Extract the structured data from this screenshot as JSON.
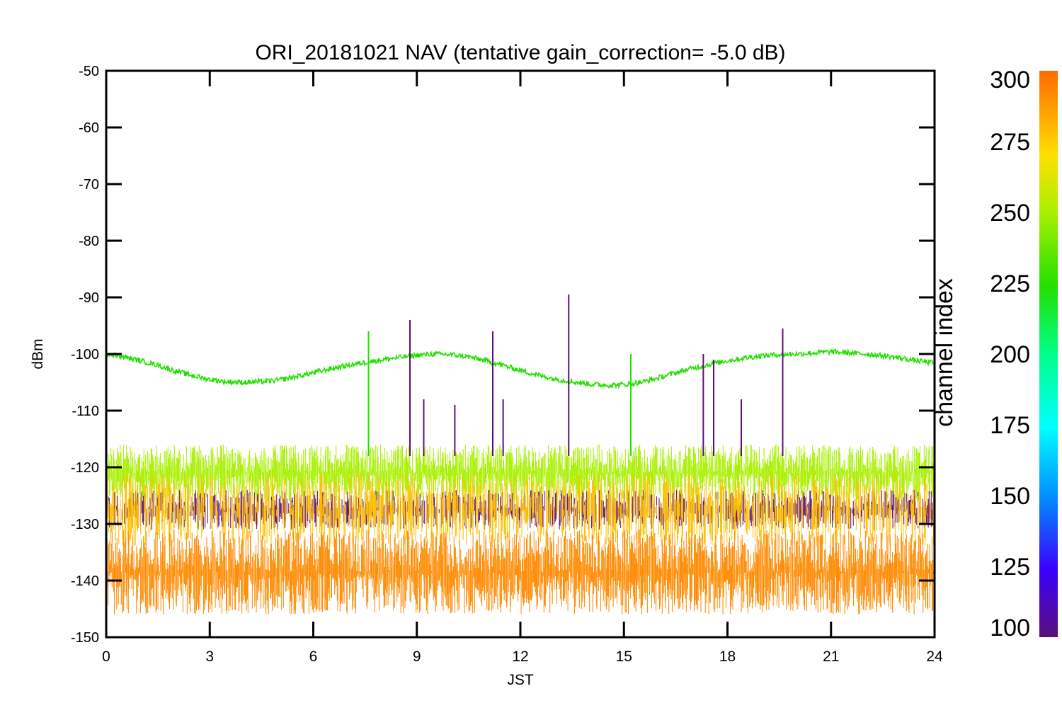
{
  "chart_data": {
    "type": "line",
    "title": "ORI_20181021 NAV (tentative gain_correction= -5.0 dB)",
    "xlabel": "JST",
    "ylabel": "dBm",
    "xlim": [
      0,
      24
    ],
    "ylim": [
      -150,
      -50
    ],
    "x_ticks": [
      0,
      3,
      6,
      9,
      12,
      15,
      18,
      21,
      24
    ],
    "y_ticks": [
      -50,
      -60,
      -70,
      -80,
      -90,
      -100,
      -110,
      -120,
      -130,
      -140,
      -150
    ],
    "colorbar": {
      "label": "channel index",
      "range": [
        100,
        300
      ],
      "ticks": [
        300,
        275,
        250,
        225,
        200,
        175,
        150,
        125,
        100
      ],
      "colormap": [
        "#5a0f7a",
        "#3b00ff",
        "#0090ff",
        "#00ffff",
        "#00ff88",
        "#22e000",
        "#a8f000",
        "#ffe000",
        "#ffa000",
        "#ff6a00"
      ]
    },
    "series": [
      {
        "channel_color": "#22e000",
        "description_curve": "strong",
        "x": [
          0,
          0.5,
          1,
          1.5,
          2,
          2.5,
          3,
          3.5,
          4,
          4.5,
          5,
          5.5,
          6,
          6.5,
          7,
          7.5,
          8,
          8.5,
          9,
          9.5,
          10,
          10.5,
          11,
          11.5,
          12,
          12.5,
          13,
          13.5,
          14,
          14.5,
          15,
          15.5,
          16,
          16.5,
          17,
          17.5,
          18,
          18.5,
          19,
          19.5,
          20,
          20.5,
          21,
          21.5,
          22,
          22.5,
          23,
          23.5,
          24
        ],
        "values": [
          -100,
          -100.5,
          -101.2,
          -102,
          -103,
          -103.8,
          -104.5,
          -104.9,
          -105,
          -104.9,
          -104.6,
          -104,
          -103.3,
          -102.6,
          -102,
          -101.5,
          -101,
          -100.6,
          -100.2,
          -100,
          -100.1,
          -100.5,
          -101.2,
          -102,
          -102.9,
          -103.7,
          -104.4,
          -104.9,
          -105.3,
          -105.5,
          -105.4,
          -105,
          -104.2,
          -103.3,
          -102.5,
          -101.8,
          -101.2,
          -100.7,
          -100.3,
          -100.1,
          -100,
          -99.8,
          -99.6,
          -99.8,
          -100,
          -100.3,
          -100.7,
          -101.2,
          -101.6
        ]
      },
      {
        "channel_color": "#a8f000",
        "band": "upper-noise",
        "y_center": -121,
        "y_range": [
          -126,
          -116
        ]
      },
      {
        "channel_color": "#5a0f7a",
        "band": "dark-noise",
        "y_center": -128,
        "y_range": [
          -131,
          -124
        ]
      },
      {
        "channel_color": "#ffc000",
        "band": "amber-noise",
        "y_center": -128,
        "y_range": [
          -134,
          -121
        ]
      },
      {
        "channel_color": "#ff8a00",
        "band": "orange-noise",
        "y_center": -138,
        "y_range": [
          -146,
          -131
        ]
      }
    ],
    "spikes": [
      {
        "x": 7.6,
        "y": -96,
        "color": "#22e000"
      },
      {
        "x": 8.8,
        "y": -94,
        "color": "#5a0f7a"
      },
      {
        "x": 9.2,
        "y": -108,
        "color": "#5a0f7a"
      },
      {
        "x": 10.1,
        "y": -109,
        "color": "#5a0f7a"
      },
      {
        "x": 11.2,
        "y": -96,
        "color": "#5a0f7a"
      },
      {
        "x": 11.5,
        "y": -108,
        "color": "#5a0f7a"
      },
      {
        "x": 13.4,
        "y": -89.5,
        "color": "#5a0f7a"
      },
      {
        "x": 15.2,
        "y": -100,
        "color": "#22e000"
      },
      {
        "x": 17.3,
        "y": -100,
        "color": "#5a0f7a"
      },
      {
        "x": 17.6,
        "y": -101,
        "color": "#5a0f7a"
      },
      {
        "x": 18.4,
        "y": -108,
        "color": "#5a0f7a"
      },
      {
        "x": 19.6,
        "y": -95.5,
        "color": "#5a0f7a"
      }
    ],
    "grid": false,
    "legend": "colorbar-right"
  }
}
